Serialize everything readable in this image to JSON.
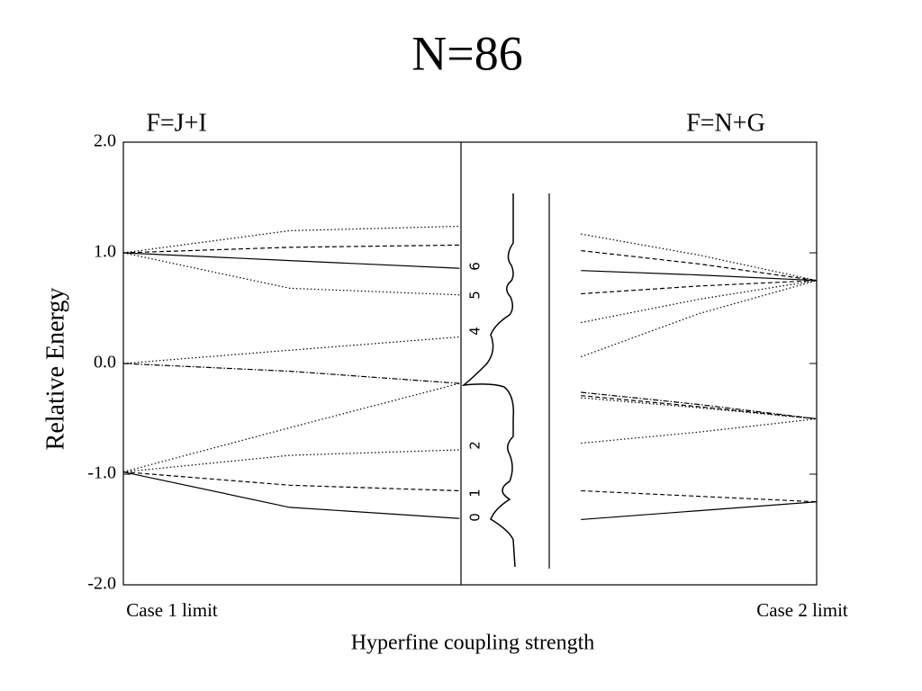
{
  "chart_data": {
    "type": "line",
    "title": "N=86",
    "annotations": [
      "F=J+I",
      "F=N+G"
    ],
    "x_end_labels": [
      "Case 1 limit",
      "Case 2 limit"
    ],
    "x_label": "Hyperfine coupling strength",
    "y_label": "Relative Energy",
    "xlim": [
      0,
      1
    ],
    "ylim": [
      -2,
      2
    ],
    "yticks": [
      {
        "value": 2,
        "label": "2.0"
      },
      {
        "value": 1,
        "label": "1.0"
      },
      {
        "value": 0,
        "label": "0.0"
      },
      {
        "value": -1,
        "label": "-1.0"
      },
      {
        "value": -2,
        "label": "-2.0"
      }
    ],
    "color": "#000000",
    "spectrum_labels": [
      "0",
      "1",
      "2",
      "4",
      "5",
      "6"
    ],
    "series": [
      {
        "dash": "dotted",
        "x": [
          0,
          0.24,
          0.485
        ],
        "values": [
          1.0,
          1.2,
          1.24
        ]
      },
      {
        "dash": "dashed",
        "x": [
          0,
          0.24,
          0.485
        ],
        "values": [
          1.0,
          1.05,
          1.07
        ]
      },
      {
        "dash": "solid",
        "x": [
          0,
          0.24,
          0.485
        ],
        "values": [
          1.0,
          0.93,
          0.86
        ]
      },
      {
        "dash": "dotted",
        "x": [
          0,
          0.24,
          0.485
        ],
        "values": [
          1.0,
          0.68,
          0.62
        ]
      },
      {
        "dash": "dotted",
        "x": [
          0,
          0.24,
          0.485
        ],
        "values": [
          0,
          0.12,
          0.24
        ]
      },
      {
        "dash": "dashdot",
        "x": [
          0,
          0.24,
          0.485
        ],
        "values": [
          0,
          -0.07,
          -0.18
        ]
      },
      {
        "dash": "dotted",
        "x": [
          0,
          0.24,
          0.485
        ],
        "values": [
          -0.98,
          -0.58,
          -0.18
        ]
      },
      {
        "dash": "dotted",
        "x": [
          0,
          0.24,
          0.485
        ],
        "values": [
          -0.98,
          -0.83,
          -0.78
        ]
      },
      {
        "dash": "dashed",
        "x": [
          0,
          0.24,
          0.485
        ],
        "values": [
          -0.98,
          -1.1,
          -1.15
        ]
      },
      {
        "dash": "solid",
        "x": [
          0,
          0.24,
          0.485
        ],
        "values": [
          -0.98,
          -1.3,
          -1.4
        ]
      },
      {
        "dash": "dotted",
        "x": [
          0.66,
          0.83,
          1
        ],
        "values": [
          1.17,
          0.98,
          0.75
        ]
      },
      {
        "dash": "dashed",
        "x": [
          0.66,
          0.83,
          1
        ],
        "values": [
          1.02,
          0.9,
          0.75
        ]
      },
      {
        "dash": "solid",
        "x": [
          0.66,
          0.83,
          1
        ],
        "values": [
          0.84,
          0.8,
          0.75
        ]
      },
      {
        "dash": "dashed",
        "x": [
          0.66,
          0.83,
          1
        ],
        "values": [
          0.63,
          0.7,
          0.75
        ]
      },
      {
        "dash": "dotted",
        "x": [
          0.66,
          0.83,
          1
        ],
        "values": [
          0.37,
          0.58,
          0.75
        ]
      },
      {
        "dash": "dotted",
        "x": [
          0.66,
          0.83,
          1
        ],
        "values": [
          0.06,
          0.45,
          0.75
        ]
      },
      {
        "dash": "dashdot",
        "x": [
          0.66,
          0.83,
          1
        ],
        "values": [
          -0.26,
          -0.37,
          -0.5
        ]
      },
      {
        "dash": "dashed",
        "x": [
          0.66,
          0.83,
          1
        ],
        "values": [
          -0.29,
          -0.39,
          -0.5
        ]
      },
      {
        "dash": "dotted",
        "x": [
          0.66,
          0.83,
          1
        ],
        "values": [
          -0.31,
          -0.4,
          -0.5
        ]
      },
      {
        "dash": "dotted",
        "x": [
          0.66,
          0.83,
          1
        ],
        "values": [
          -0.72,
          -0.62,
          -0.5
        ]
      },
      {
        "dash": "dashed",
        "x": [
          0.66,
          0.83,
          1
        ],
        "values": [
          -1.15,
          -1.2,
          -1.25
        ]
      },
      {
        "dash": "solid",
        "x": [
          0.66,
          0.83,
          1
        ],
        "values": [
          -1.41,
          -1.33,
          -1.25
        ]
      }
    ]
  }
}
